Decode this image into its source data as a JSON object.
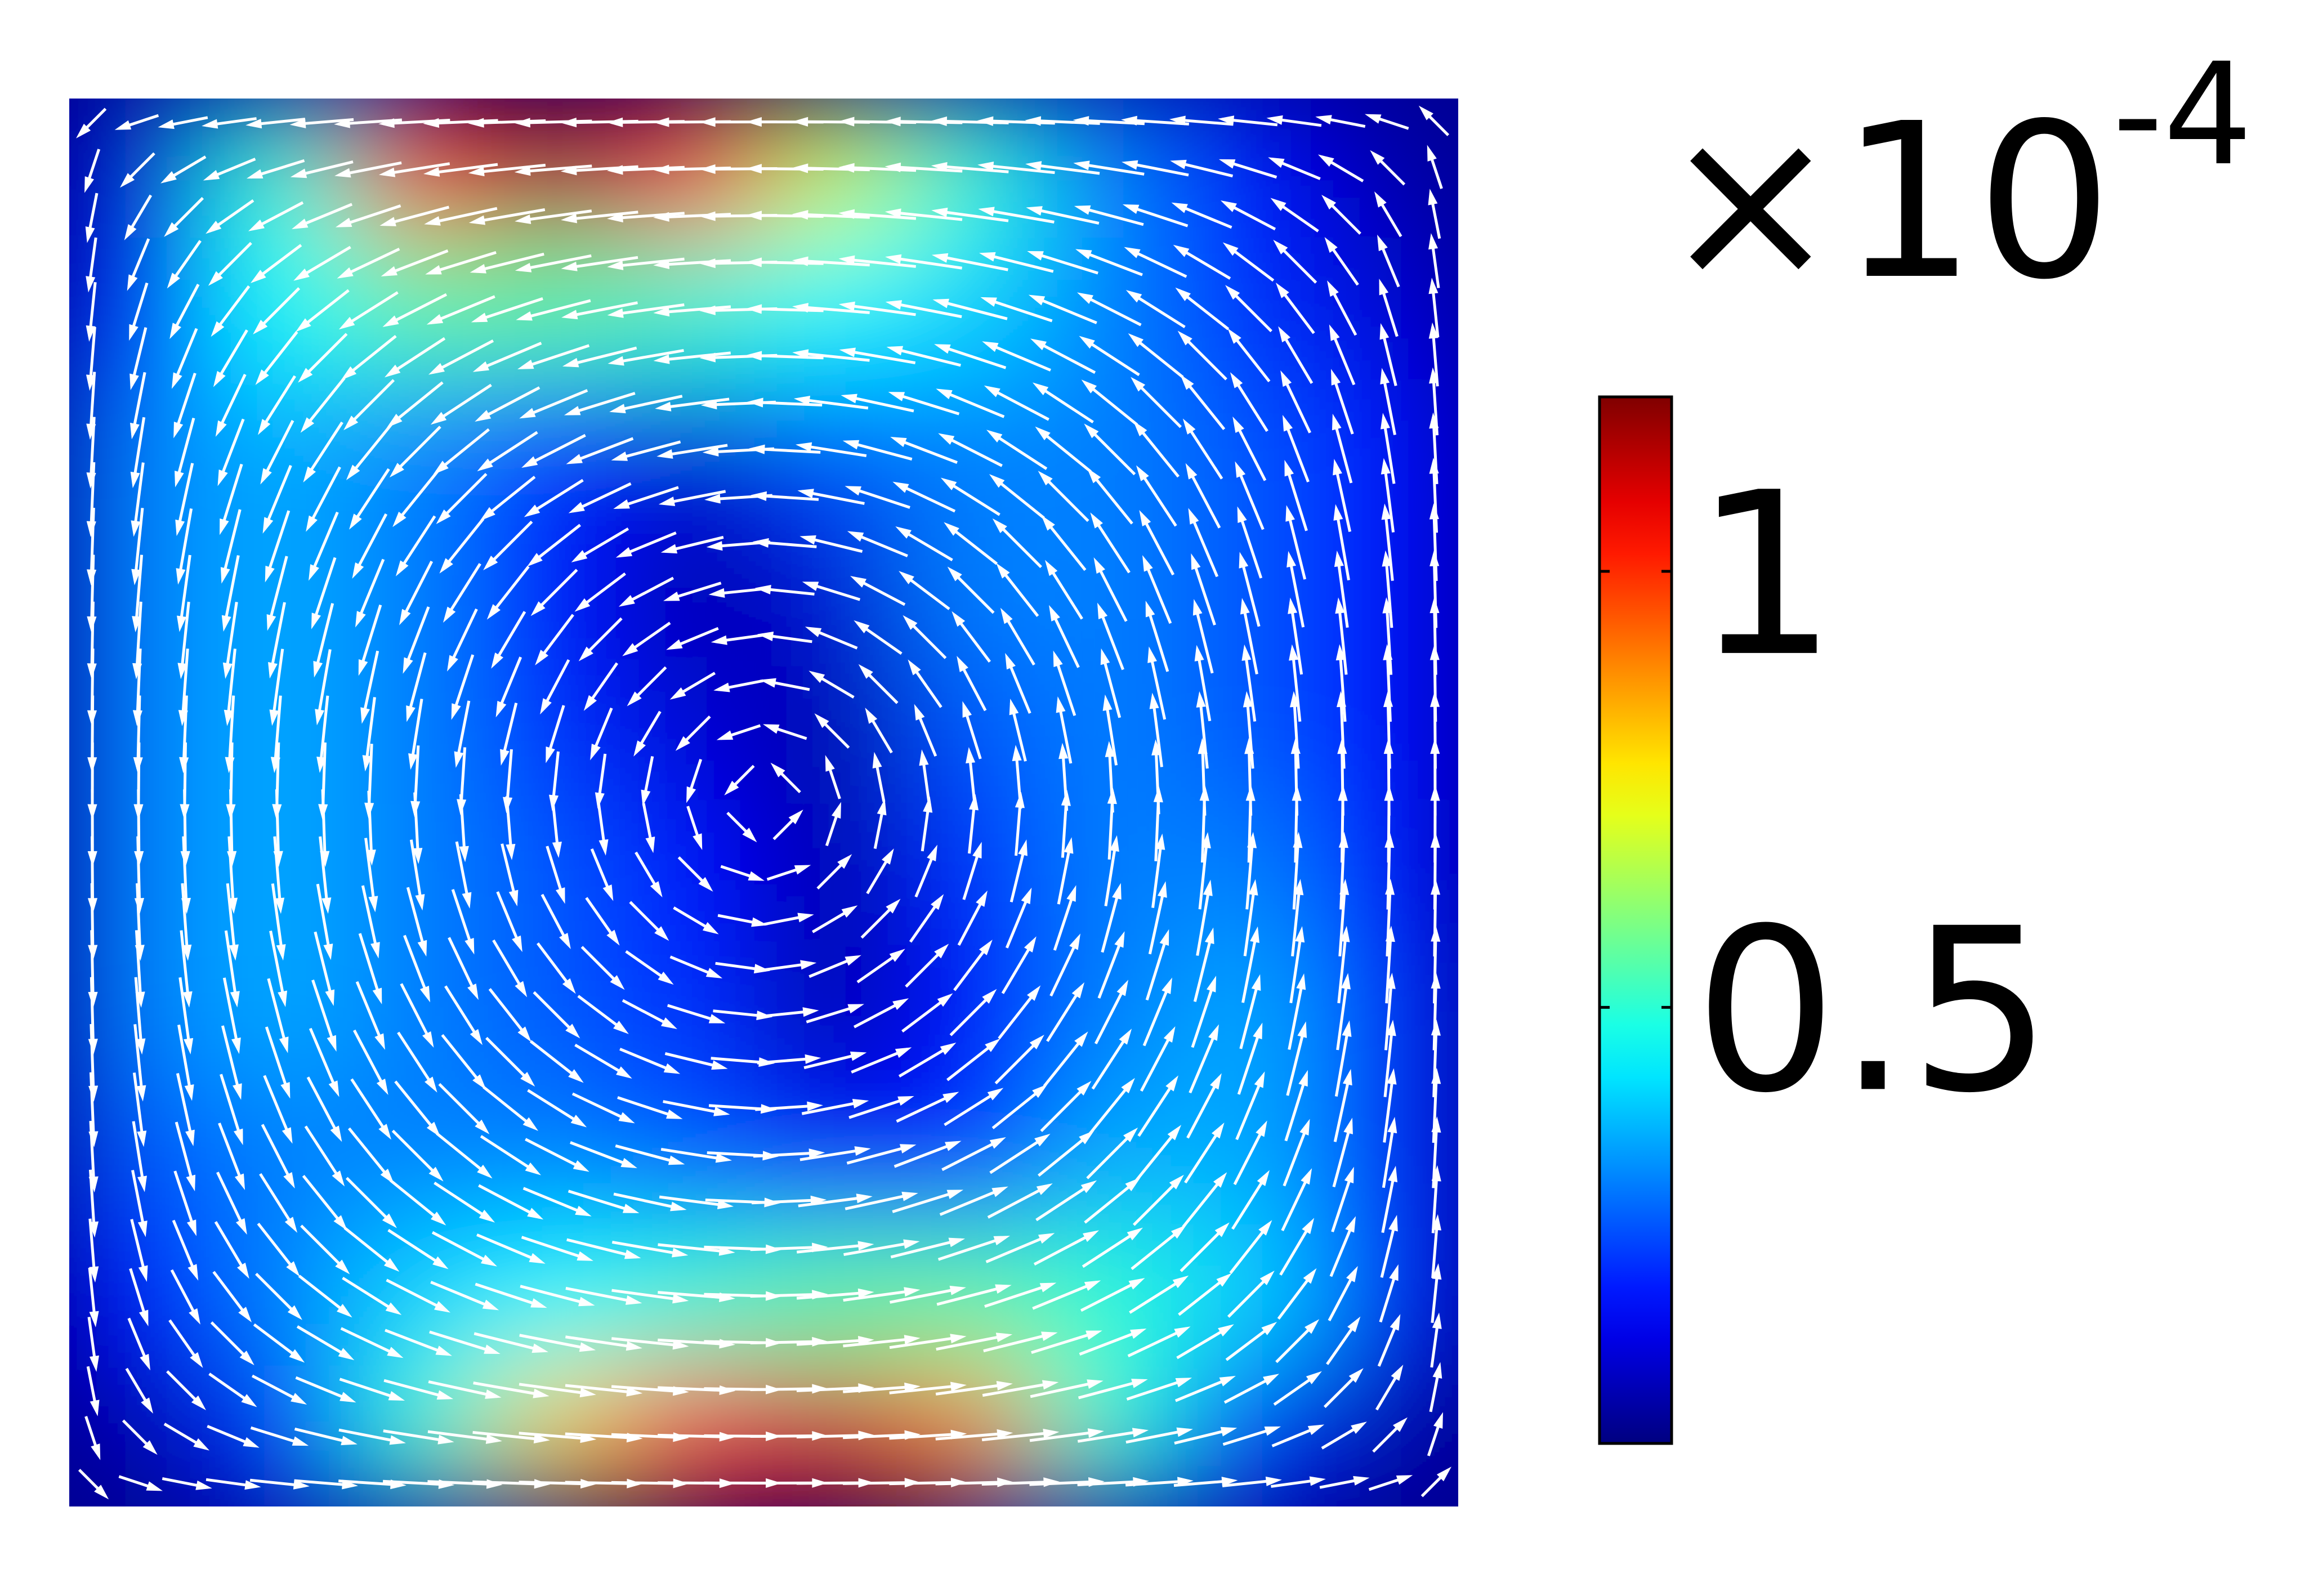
{
  "chart_data": {
    "type": "heatmap",
    "colorbar_label": {
      "base": "×10",
      "exponent": "-4"
    },
    "colormap": "jet",
    "clim": [
      0,
      1.2
    ],
    "colorbar_ticks": [
      0.5,
      1
    ],
    "z": [
      [
        0.1,
        0.5,
        1.0,
        1.15,
        1.0,
        0.7,
        0.5,
        0.3,
        0.15,
        0.05
      ],
      [
        0.2,
        0.45,
        0.55,
        0.55,
        0.5,
        0.45,
        0.4,
        0.3,
        0.2,
        0.1
      ],
      [
        0.3,
        0.35,
        0.3,
        0.2,
        0.1,
        0.25,
        0.3,
        0.3,
        0.25,
        0.15
      ],
      [
        0.3,
        0.35,
        0.3,
        0.15,
        0.05,
        0.1,
        0.3,
        0.3,
        0.25,
        0.15
      ],
      [
        0.3,
        0.35,
        0.3,
        0.2,
        0.1,
        0.05,
        0.25,
        0.3,
        0.25,
        0.15
      ],
      [
        0.3,
        0.35,
        0.3,
        0.25,
        0.15,
        0.05,
        0.2,
        0.3,
        0.3,
        0.15
      ],
      [
        0.3,
        0.35,
        0.3,
        0.25,
        0.2,
        0.05,
        0.15,
        0.3,
        0.35,
        0.2
      ],
      [
        0.25,
        0.3,
        0.3,
        0.3,
        0.25,
        0.15,
        0.2,
        0.35,
        0.35,
        0.2
      ],
      [
        0.15,
        0.3,
        0.4,
        0.45,
        0.5,
        0.55,
        0.55,
        0.5,
        0.4,
        0.2
      ],
      [
        0.05,
        0.2,
        0.5,
        0.8,
        1.0,
        1.1,
        0.9,
        0.5,
        0.2,
        0.05
      ]
    ]
  }
}
